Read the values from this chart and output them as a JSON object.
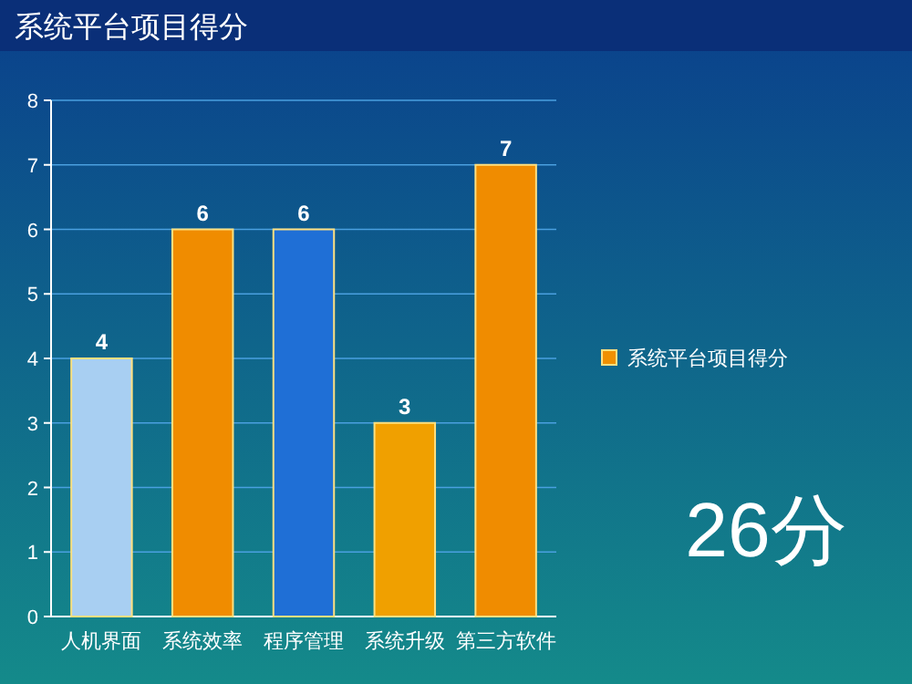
{
  "chart_data": {
    "type": "bar",
    "title": "系统平台项目得分",
    "categories": [
      "人机界面",
      "系统效率",
      "程序管理",
      "系统升级",
      "第三方软件"
    ],
    "series": [
      {
        "name": "系统平台项目得分",
        "color": "#f09000",
        "colors": [
          "#a8cff2",
          "#f08c00",
          "#1f6fd6",
          "#f0a000",
          "#f08c00"
        ],
        "values": [
          4,
          6,
          6,
          3,
          7
        ]
      }
    ],
    "ylim": [
      0,
      8
    ],
    "yticks": [
      0,
      1,
      2,
      3,
      4,
      5,
      6,
      7,
      8
    ],
    "grid": "y",
    "data_labels": true,
    "legend": "right",
    "annotations": [
      "26分"
    ]
  }
}
